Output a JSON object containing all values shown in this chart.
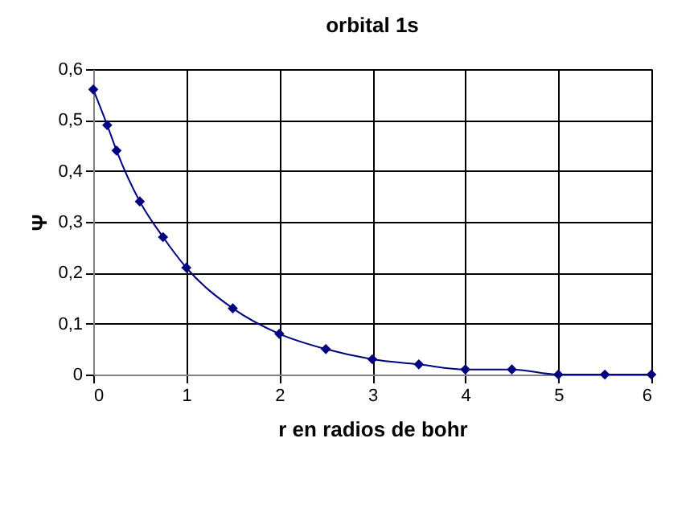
{
  "chart_data": {
    "type": "line",
    "title": "orbital 1s",
    "xlabel": "r en radios de bohr",
    "ylabel": "Ψ",
    "x": [
      0,
      0.15,
      0.25,
      0.5,
      0.75,
      1,
      1.5,
      2,
      2.5,
      3,
      3.5,
      4,
      4.5,
      5,
      5.5,
      6
    ],
    "series": [
      {
        "color": "#000080",
        "values": [
          0.56,
          0.49,
          0.44,
          0.34,
          0.27,
          0.21,
          0.13,
          0.08,
          0.05,
          0.03,
          0.02,
          0.01,
          0.01,
          0,
          0,
          0
        ]
      }
    ],
    "xlim": [
      0,
      6
    ],
    "xticks": [
      0,
      1,
      2,
      3,
      4,
      5,
      6
    ],
    "ylim": [
      0,
      0.6
    ],
    "yticks": [
      0,
      {
        "value": 0.1,
        "label": "0,1"
      },
      {
        "value": 0.2,
        "label": "0,2"
      },
      {
        "value": 0.3,
        "label": "0,3"
      },
      {
        "value": 0.4,
        "label": "0,4"
      },
      {
        "value": 0.5,
        "label": "0,5"
      },
      {
        "value": 0.6,
        "label": "0,6"
      }
    ],
    "grid": true,
    "marker": "diamond",
    "line_style": "solid"
  }
}
